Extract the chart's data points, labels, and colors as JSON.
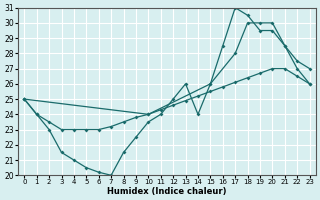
{
  "bg_color": "#d8eff0",
  "grid_color": "#ffffff",
  "line_color": "#1a6b6b",
  "xlabel": "Humidex (Indice chaleur)",
  "xlim": [
    -0.5,
    23.5
  ],
  "ylim": [
    20,
    31
  ],
  "xticks": [
    0,
    1,
    2,
    3,
    4,
    5,
    6,
    7,
    8,
    9,
    10,
    11,
    12,
    13,
    14,
    15,
    16,
    17,
    18,
    19,
    20,
    21,
    22,
    23
  ],
  "yticks": [
    20,
    21,
    22,
    23,
    24,
    25,
    26,
    27,
    28,
    29,
    30,
    31
  ],
  "line1_x": [
    0,
    1,
    2,
    3,
    4,
    5,
    6,
    7,
    8,
    9,
    10,
    11,
    12,
    13,
    14,
    15,
    16,
    17,
    18,
    19,
    20,
    21,
    22,
    23
  ],
  "line1_y": [
    25,
    24,
    23.5,
    23,
    23,
    23,
    23,
    23.2,
    23.5,
    23.8,
    24,
    24.3,
    24.6,
    24.9,
    25.2,
    25.5,
    25.8,
    26.1,
    26.4,
    26.7,
    27,
    27,
    26.5,
    26
  ],
  "line2_x": [
    0,
    1,
    2,
    3,
    4,
    5,
    6,
    7,
    8,
    9,
    10,
    11,
    12,
    13,
    14,
    15,
    16,
    17,
    18,
    19,
    20,
    21,
    22,
    23
  ],
  "line2_y": [
    25,
    24,
    23,
    21.5,
    21,
    20.5,
    20.2,
    20,
    21.5,
    22.5,
    23.5,
    24,
    25,
    26,
    24,
    26,
    28.5,
    31,
    30.5,
    29.5,
    29.5,
    28.5,
    27.5,
    27
  ],
  "line3_x": [
    0,
    10,
    15,
    17,
    18,
    19,
    20,
    21,
    22,
    23
  ],
  "line3_y": [
    25,
    24,
    26,
    28,
    30,
    30,
    30,
    28.5,
    27,
    26
  ]
}
